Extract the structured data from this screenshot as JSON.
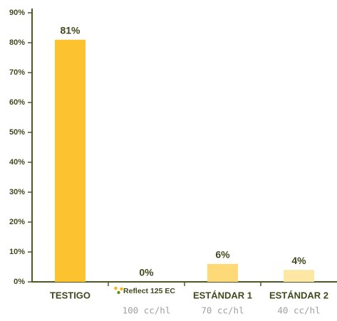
{
  "chart_data": {
    "type": "bar",
    "categories": [
      "TESTIGO",
      "Reflect 125 EC",
      "ESTÁNDAR 1",
      "ESTÁNDAR 2"
    ],
    "sublabels": [
      null,
      "100 cc/hl",
      "70 cc/hl",
      "40 cc/hl"
    ],
    "values": [
      81,
      0,
      6,
      4
    ],
    "value_labels": [
      "81%",
      "0%",
      "6%",
      "4%"
    ],
    "colors": [
      "#fcc230",
      "#fcc230",
      "#fdd978",
      "#fde7a4"
    ],
    "ylim": [
      0,
      90
    ],
    "yticks": [
      {
        "value": 0,
        "label": "0%"
      },
      {
        "value": 10,
        "label": "10%"
      },
      {
        "value": 20,
        "label": "20%"
      },
      {
        "value": 30,
        "label": "30%"
      },
      {
        "value": 40,
        "label": "40%"
      },
      {
        "value": 50,
        "label": "50%"
      },
      {
        "value": 60,
        "label": "60%"
      },
      {
        "value": 70,
        "label": "70%"
      },
      {
        "value": 80,
        "label": "80%"
      },
      {
        "value": 90,
        "label": "90%"
      }
    ],
    "grid": false
  }
}
